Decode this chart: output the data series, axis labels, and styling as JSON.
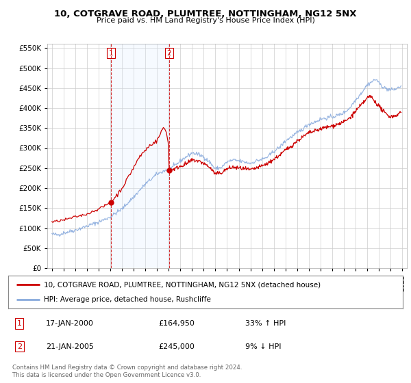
{
  "title": "10, COTGRAVE ROAD, PLUMTREE, NOTTINGHAM, NG12 5NX",
  "subtitle": "Price paid vs. HM Land Registry's House Price Index (HPI)",
  "legend_line1": "10, COTGRAVE ROAD, PLUMTREE, NOTTINGHAM, NG12 5NX (detached house)",
  "legend_line2": "HPI: Average price, detached house, Rushcliffe",
  "sale1_label": "1",
  "sale1_date": "17-JAN-2000",
  "sale1_price": "£164,950",
  "sale1_hpi": "33% ↑ HPI",
  "sale2_label": "2",
  "sale2_date": "21-JAN-2005",
  "sale2_price": "£245,000",
  "sale2_hpi": "9% ↓ HPI",
  "footer": "Contains HM Land Registry data © Crown copyright and database right 2024.\nThis data is licensed under the Open Government Licence v3.0.",
  "sale1_x": 2000.04,
  "sale1_y": 164950,
  "sale2_x": 2005.04,
  "sale2_y": 245000,
  "line_color_red": "#cc0000",
  "line_color_blue": "#88aadd",
  "shade_color": "#ddeeff",
  "vline_color": "#cc0000",
  "background_color": "#ffffff",
  "grid_color": "#cccccc",
  "ylim": [
    0,
    560000
  ],
  "xlim_start": 1994.6,
  "xlim_end": 2025.4
}
